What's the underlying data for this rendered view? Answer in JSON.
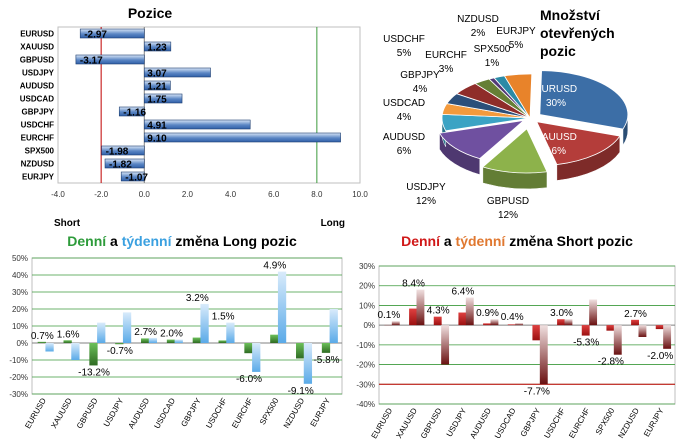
{
  "chart_data": [
    {
      "type": "bar",
      "orientation": "horizontal",
      "title": "Pozice",
      "categories": [
        "EURUSD",
        "XAUUSD",
        "GBPUSD",
        "USDJPY",
        "AUDUSD",
        "USDCAD",
        "GBPJPY",
        "USDCHF",
        "EURCHF",
        "SPX500",
        "NZDUSD",
        "EURJPY"
      ],
      "values": [
        -2.97,
        1.23,
        -3.17,
        3.07,
        1.21,
        1.75,
        -1.16,
        4.91,
        9.1,
        -1.98,
        -1.82,
        -1.07
      ],
      "value_labels": [
        "-2.97",
        "1.23",
        "-3.17",
        "3.07",
        "1.21",
        "1.75",
        "-1.16",
        "4.91",
        "9.10",
        "-1.98",
        "-1.82",
        "-1.07"
      ],
      "xlim": [
        -4,
        10
      ],
      "xticks": [
        "-4.0",
        "-2.0",
        "0.0",
        "2.0",
        "4.0",
        "6.0",
        "8.0",
        "10.0"
      ],
      "reference_lines": [
        -2,
        8
      ],
      "axis_end_labels": {
        "left": "Short",
        "right": "Long"
      },
      "colors": {
        "bar": "#2f5fa8",
        "bar_light": "#d9e6f7",
        "ref_short": "#c00000",
        "ref_long": "#3c9a3c"
      }
    },
    {
      "type": "pie",
      "title": "Množství otevřených pozic",
      "title_lines": [
        "Množství",
        "otevřených",
        "pozic"
      ],
      "slices": [
        {
          "name": "EURUSD",
          "value": 30,
          "label": "30%",
          "color": "#3c6ea6"
        },
        {
          "name": "XAUUSD",
          "value": 16,
          "label": "16%",
          "color": "#b43d3a"
        },
        {
          "name": "GBPUSD",
          "value": 12,
          "label": "12%",
          "color": "#8db24b"
        },
        {
          "name": "USDJPY",
          "value": 12,
          "label": "12%",
          "color": "#6f50a0"
        },
        {
          "name": "AUDUSD",
          "value": 6,
          "label": "6%",
          "color": "#3ba3c4"
        },
        {
          "name": "USDCAD",
          "value": 4,
          "label": "4%",
          "color": "#f39a3d"
        },
        {
          "name": "GBPJPY",
          "value": 4,
          "label": "4%",
          "color": "#2c4f7a"
        },
        {
          "name": "USDCHF",
          "value": 5,
          "label": "5%",
          "color": "#8f2d2a"
        },
        {
          "name": "EURCHF",
          "value": 3,
          "label": "3%",
          "color": "#667f36"
        },
        {
          "name": "SPX500",
          "value": 1,
          "label": "1%",
          "color": "#523a78"
        },
        {
          "name": "NZDUSD",
          "value": 2,
          "label": "2%",
          "color": "#2b8aa6"
        },
        {
          "name": "EURJPY",
          "value": 5,
          "label": "5%",
          "color": "#e8832a"
        }
      ]
    },
    {
      "type": "bar",
      "title_parts": [
        {
          "text": "Denní",
          "color": "#2d9b3a"
        },
        {
          "text": " a ",
          "color": "#000000"
        },
        {
          "text": "týdenní",
          "color": "#3aa0e0"
        },
        {
          "text": " změna Long pozic",
          "color": "#000000"
        }
      ],
      "categories": [
        "EURUSD",
        "XAUUSD",
        "GBPUSD",
        "USDJPY",
        "AUDUSD",
        "USDCAD",
        "GBPJPY",
        "USDCHF",
        "EURCHF",
        "SPX500",
        "NZDUSD",
        "EURJPY"
      ],
      "series": [
        {
          "name": "Denní",
          "values": [
            0.7,
            1.6,
            -13.2,
            -0.7,
            2.7,
            2.0,
            3.2,
            1.5,
            -6.0,
            4.9,
            -9.1,
            -5.8
          ]
        },
        {
          "name": "Týdenní",
          "values": [
            -5,
            -10,
            12,
            18,
            3,
            2,
            23,
            12,
            -17,
            42,
            -24,
            20
          ]
        }
      ],
      "data_labels": [
        "0.7%",
        "1.6%",
        "-13.2%",
        "-0.7%",
        "2.7%",
        "2.0%",
        "3.2%",
        "1.5%",
        "-6.0%",
        "4.9%",
        "-9.1%",
        "-5.8%"
      ],
      "ylim": [
        -30,
        50
      ],
      "yticks": [
        "-30%",
        "-20%",
        "-10%",
        "0%",
        "10%",
        "20%",
        "30%",
        "40%",
        "50%"
      ],
      "colors": {
        "daily": "#3d8a2c",
        "weekly": "#5aaae8",
        "grid": "#3c9a3c"
      }
    },
    {
      "type": "bar",
      "title_parts": [
        {
          "text": "Denní",
          "color": "#d01818"
        },
        {
          "text": " a ",
          "color": "#000000"
        },
        {
          "text": "týdenní",
          "color": "#e07830"
        },
        {
          "text": " změna Short pozic",
          "color": "#000000"
        }
      ],
      "categories": [
        "EURUSD",
        "XAUUSD",
        "GBPUSD",
        "USDJPY",
        "AUDUSD",
        "USDCAD",
        "GBPJPY",
        "USDCHF",
        "EURCHF",
        "SPX500",
        "NZDUSD",
        "EURJPY"
      ],
      "series": [
        {
          "name": "Denní",
          "values": [
            0.1,
            8.4,
            4.3,
            6.4,
            0.9,
            0.4,
            -7.7,
            3.0,
            -5.3,
            -2.8,
            2.7,
            -2.0
          ]
        },
        {
          "name": "Týdenní",
          "values": [
            2,
            18,
            -20,
            14,
            3,
            1,
            -30,
            3,
            13,
            -15,
            -6,
            -12
          ]
        }
      ],
      "data_labels": [
        "0.1%",
        "8.4%",
        "4.3%",
        "6.4%",
        "0.9%",
        "0.4%",
        "-7.7%",
        "3.0%",
        "-5.3%",
        "-2.8%",
        "2.7%",
        "-2.0%"
      ],
      "ylim": [
        -40,
        30
      ],
      "yticks": [
        "-40%",
        "-30%",
        "-20%",
        "-10%",
        "0%",
        "10%",
        "20%",
        "30%"
      ],
      "colors": {
        "daily": "#c41a1a",
        "weekly": "#8a1a1a",
        "grid": "#3c9a3c",
        "ref": "#c00000"
      }
    }
  ]
}
